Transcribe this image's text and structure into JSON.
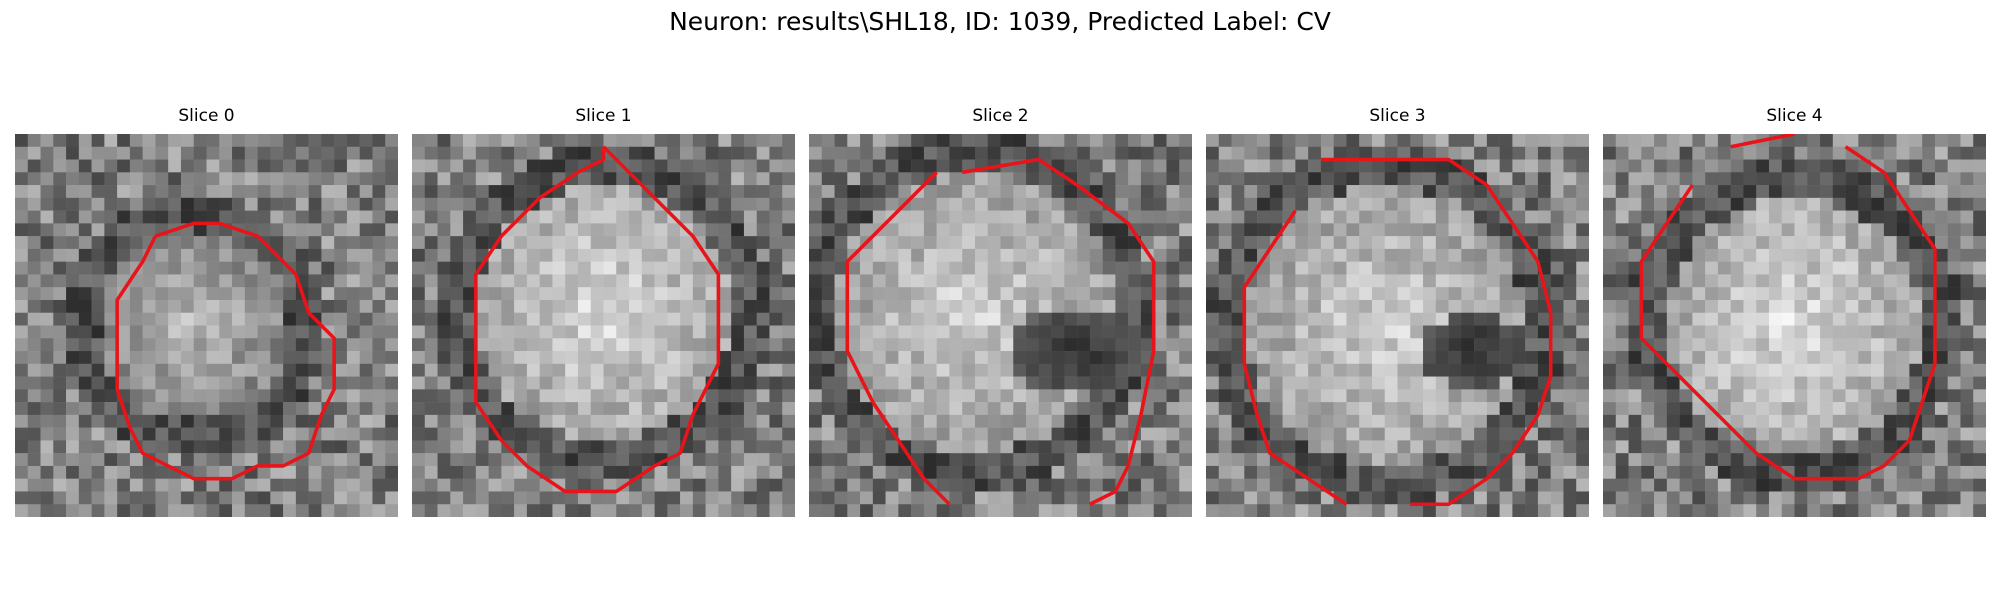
{
  "figure": {
    "title": "Neuron: results\\SHL18, ID: 1039, Predicted Label: CV",
    "colors": {
      "contour": "#e8141a",
      "colormap": "gray"
    },
    "slices": [
      {
        "title": "Slice 0"
      },
      {
        "title": "Slice 1"
      },
      {
        "title": "Slice 2"
      },
      {
        "title": "Slice 3"
      },
      {
        "title": "Slice 4"
      }
    ]
  }
}
